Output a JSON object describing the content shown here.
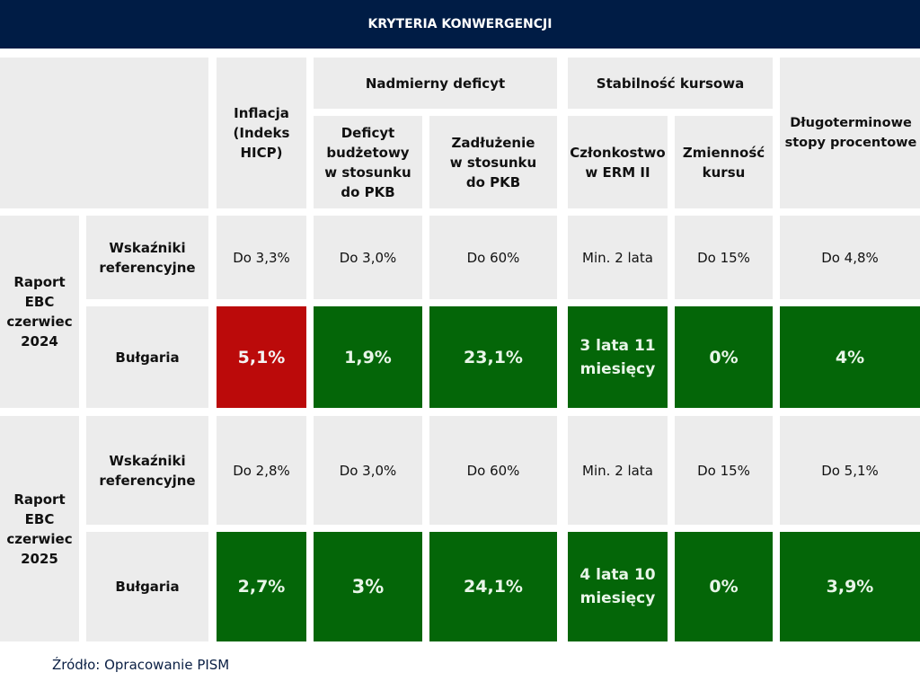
{
  "title": "KRYTERIA KONWERGENCJI",
  "headers": {
    "inflation": "Inflacja (Indeks HICP)",
    "deficit_group": "Nadmierny deficyt",
    "deficit": "Deficyt budżetowy w stosunku do PKB",
    "debt": "Zadłużenie w stosunku do PKB",
    "fx_group": "Stabilność kursowa",
    "erm": "Członkostwo w ERM II",
    "volatility": "Zmienność kursu",
    "rates": "Długoterminowe stopy procentowe"
  },
  "reports": [
    {
      "label": "Raport EBC czerwiec 2024",
      "ref_label": "Wskaźniki referencyjne",
      "country_label": "Bułgaria",
      "ref": [
        "Do 3,3%",
        "Do 3,0%",
        "Do 60%",
        "Min. 2 lata",
        "Do 15%",
        "Do 4,8%"
      ],
      "values": [
        "5,1%",
        "1,9%",
        "23,1%",
        "3 lata 11 miesięcy",
        "0%",
        "4%"
      ],
      "status": [
        "fail",
        "pass",
        "pass",
        "pass",
        "pass",
        "pass"
      ]
    },
    {
      "label": "Raport EBC czerwiec 2025",
      "ref_label": "Wskaźniki referencyjne",
      "country_label": "Bułgaria",
      "ref": [
        "Do 2,8%",
        "Do 3,0%",
        "Do 60%",
        "Min. 2 lata",
        "Do 15%",
        "Do 5,1%"
      ],
      "values": [
        "2,7%",
        "3%",
        "24,1%",
        "4 lata 10 miesięcy",
        "0%",
        "3,9%"
      ],
      "status": [
        "pass",
        "pass",
        "pass",
        "pass",
        "pass",
        "pass"
      ]
    }
  ],
  "colors": {
    "header": "#001c45",
    "cell": "#ececec",
    "pass": "#046608",
    "fail": "#bb0a0a"
  },
  "source": "Źródło: Opracowanie PISM"
}
